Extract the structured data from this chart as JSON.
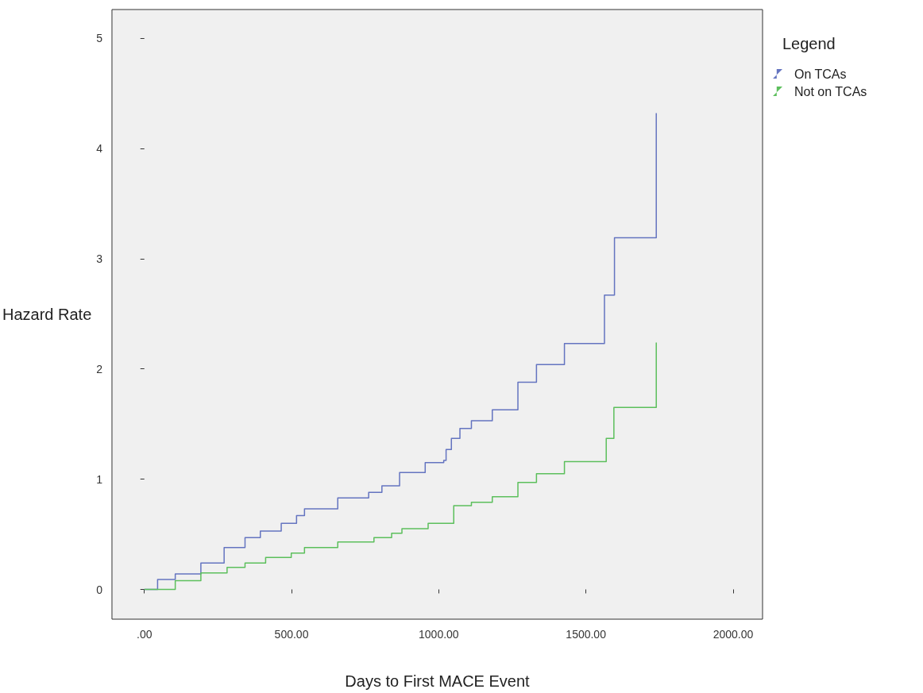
{
  "chart_data": {
    "type": "step",
    "xlabel": "Days to First MACE Event",
    "ylabel": "Hazard Rate",
    "legend_title": "Legend",
    "xlim": [
      -110,
      2100
    ],
    "ylim": [
      -0.27,
      5.26
    ],
    "xticks": [
      {
        "value": 0,
        "label": ".00"
      },
      {
        "value": 500,
        "label": "500.00"
      },
      {
        "value": 1000,
        "label": "1000.00"
      },
      {
        "value": 1500,
        "label": "1500.00"
      },
      {
        "value": 2000,
        "label": "2000.00"
      }
    ],
    "yticks": [
      0,
      1,
      2,
      3,
      4,
      5
    ],
    "grid": false,
    "legend": "top right",
    "marker": "none",
    "line_style": "solid",
    "series": [
      {
        "name": "On TCAs",
        "color": "#6474c0",
        "x": [
          0,
          45,
          105,
          192,
          271,
          342,
          394,
          465,
          517,
          544,
          657,
          762,
          807,
          867,
          954,
          1017,
          1025,
          1043,
          1072,
          1111,
          1182,
          1269,
          1332,
          1427,
          1563,
          1597,
          1739
        ],
        "values": [
          0,
          0.09,
          0.14,
          0.24,
          0.38,
          0.47,
          0.53,
          0.6,
          0.67,
          0.73,
          0.83,
          0.88,
          0.94,
          1.06,
          1.15,
          1.17,
          1.27,
          1.37,
          1.46,
          1.53,
          1.63,
          1.88,
          2.04,
          2.23,
          2.67,
          3.19,
          4.32
        ]
      },
      {
        "name": "Not on TCAs",
        "color": "#5cbf5c",
        "x": [
          0,
          105,
          192,
          281,
          342,
          412,
          499,
          544,
          657,
          780,
          840,
          875,
          964,
          1051,
          1111,
          1182,
          1269,
          1332,
          1427,
          1569,
          1595,
          1739
        ],
        "values": [
          0,
          0.08,
          0.15,
          0.2,
          0.24,
          0.29,
          0.33,
          0.38,
          0.43,
          0.47,
          0.51,
          0.55,
          0.6,
          0.76,
          0.79,
          0.84,
          0.97,
          1.05,
          1.16,
          1.37,
          1.65,
          2.24
        ]
      }
    ]
  }
}
